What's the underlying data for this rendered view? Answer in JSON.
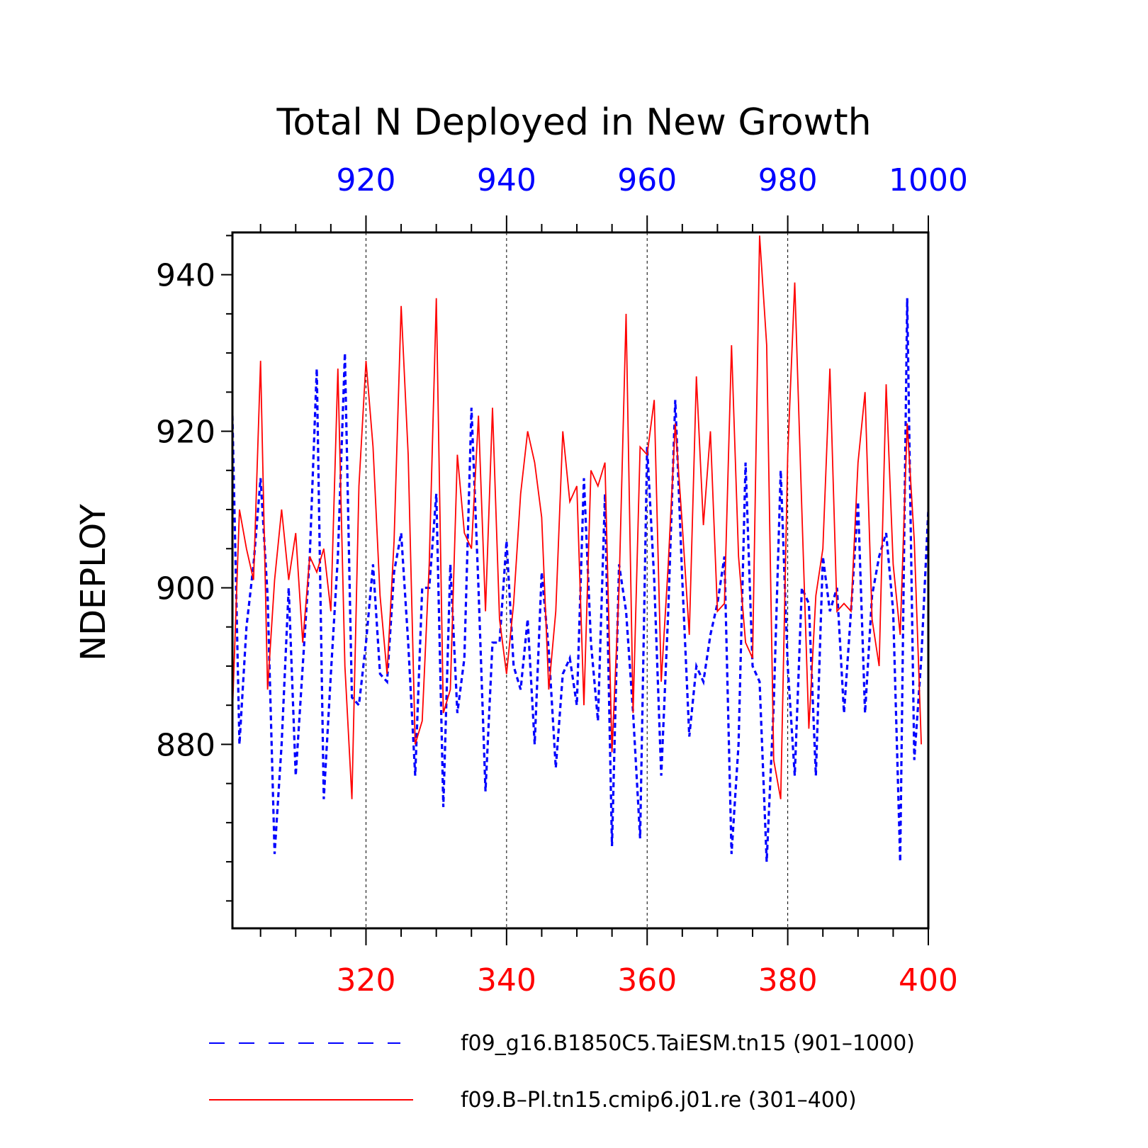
{
  "chart_data": {
    "type": "line",
    "title": "Total N Deployed in New Growth",
    "ylabel": "NDEPLOY",
    "ylim": [
      856.5,
      945.4
    ],
    "yticks": [
      880,
      900,
      920,
      940
    ],
    "grid": "vertical dashed lines at major top/bottom ticks",
    "legend_position": "bottom",
    "colors": {
      "series1": "#0000ff",
      "series2": "#ff0000",
      "axis": "#000000"
    },
    "x_top": {
      "range": [
        901,
        1000
      ],
      "ticks": [
        920,
        940,
        960,
        980,
        1000
      ],
      "color": "#0000ff"
    },
    "x_bottom": {
      "range": [
        301,
        400
      ],
      "ticks": [
        320,
        340,
        360,
        380,
        400
      ],
      "color": "#ff0000"
    },
    "series": [
      {
        "name": "f09_g16.B1850C5.TaiESM.tn15 (901–1000)",
        "axis": "top",
        "style": "dashed",
        "color": "#0000ff",
        "x_start": 901,
        "values": [
          922,
          880,
          895,
          903,
          914,
          899,
          866,
          880,
          900,
          876,
          890,
          904,
          928,
          873,
          889,
          904,
          930,
          886,
          885,
          893,
          903,
          889,
          888,
          902,
          907,
          893,
          876,
          900,
          900,
          912,
          872,
          903,
          884,
          891,
          923,
          900,
          874,
          893,
          893,
          906,
          890,
          887,
          896,
          880,
          902,
          892,
          877,
          889,
          891,
          885,
          914,
          893,
          883,
          912,
          867,
          903,
          897,
          884,
          868,
          918,
          901,
          876,
          897,
          924,
          901,
          881,
          890,
          888,
          894,
          898,
          904,
          866,
          880,
          916,
          890,
          888,
          865,
          885,
          915,
          890,
          876,
          900,
          898,
          876,
          904,
          897,
          900,
          884,
          897,
          911,
          884,
          899,
          904,
          907,
          897,
          865,
          937,
          878,
          891,
          910
        ]
      },
      {
        "name": "f09.B–Pl.tn15.cmip6.j01.re (301–400)",
        "axis": "bottom",
        "style": "solid",
        "color": "#ff0000",
        "x_start": 301,
        "values": [
          884,
          910,
          905,
          901,
          929,
          887,
          901,
          910,
          901,
          907,
          893,
          904,
          902,
          905,
          897,
          928,
          890,
          873,
          913,
          929,
          918,
          899,
          889,
          906,
          936,
          917,
          880,
          883,
          903,
          937,
          884,
          887,
          917,
          907,
          905,
          922,
          897,
          923,
          896,
          889,
          898,
          912,
          920,
          916,
          909,
          887,
          897,
          920,
          911,
          913,
          885,
          915,
          913,
          916,
          879,
          900,
          935,
          884,
          918,
          917,
          924,
          888,
          903,
          921,
          908,
          894,
          927,
          908,
          920,
          897,
          898,
          931,
          904,
          893,
          891,
          945,
          931,
          878,
          873,
          917,
          939,
          910,
          882,
          899,
          905,
          928,
          897,
          898,
          897,
          916,
          925,
          896,
          890,
          926,
          903,
          894,
          921,
          906,
          880
        ]
      }
    ]
  }
}
